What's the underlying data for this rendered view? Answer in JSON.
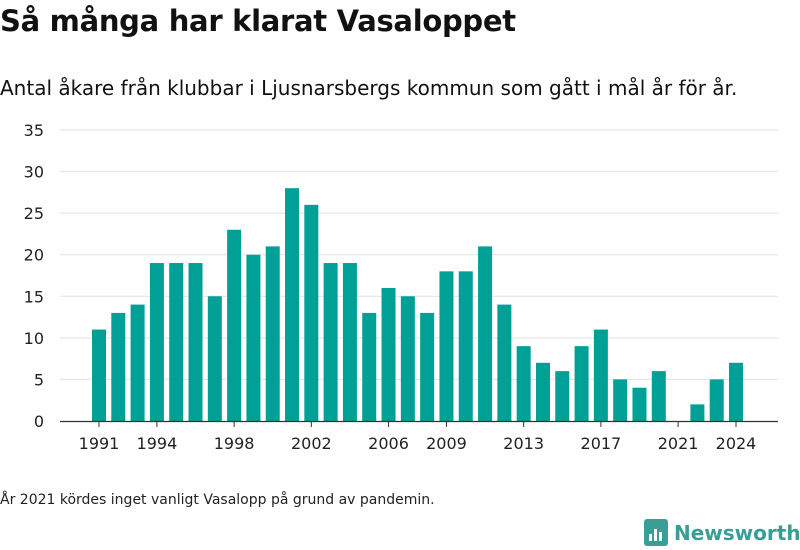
{
  "header": {
    "title": "Så många har klarat Vasaloppet",
    "subtitle": "Antal åkare från klubbar i Ljusnarsbergs kommun som gått i mål år för år."
  },
  "footnote": "År 2021 kördes inget vanligt Vasalopp på grund av pandemin.",
  "brand": {
    "name": "Newsworthy",
    "icon": "bar-chart-logo-icon",
    "color": "#3a9e97"
  },
  "chart_data": {
    "type": "bar",
    "title": "Så många har klarat Vasaloppet",
    "subtitle": "Antal åkare från klubbar i Ljusnarsbergs kommun som gått i mål år för år.",
    "x": [
      1991,
      1992,
      1993,
      1994,
      1995,
      1996,
      1997,
      1998,
      1999,
      2000,
      2001,
      2002,
      2003,
      2004,
      2005,
      2006,
      2007,
      2008,
      2009,
      2010,
      2011,
      2012,
      2013,
      2014,
      2015,
      2016,
      2017,
      2018,
      2019,
      2020,
      2021,
      2022,
      2023,
      2024
    ],
    "values": [
      11,
      13,
      14,
      19,
      19,
      19,
      15,
      23,
      20,
      21,
      28,
      26,
      19,
      19,
      13,
      16,
      15,
      13,
      18,
      18,
      21,
      14,
      9,
      7,
      6,
      9,
      11,
      5,
      4,
      6,
      0,
      2,
      5,
      7
    ],
    "x_tick_labels": [
      "1991",
      "1994",
      "1998",
      "2002",
      "2006",
      "2009",
      "2013",
      "2017",
      "2021",
      "2024"
    ],
    "y_ticks": [
      0,
      5,
      10,
      15,
      20,
      25,
      30,
      35
    ],
    "ylim": [
      0,
      35
    ],
    "xlabel": "",
    "ylabel": "",
    "grid": true,
    "bar_color": "#00a096"
  }
}
